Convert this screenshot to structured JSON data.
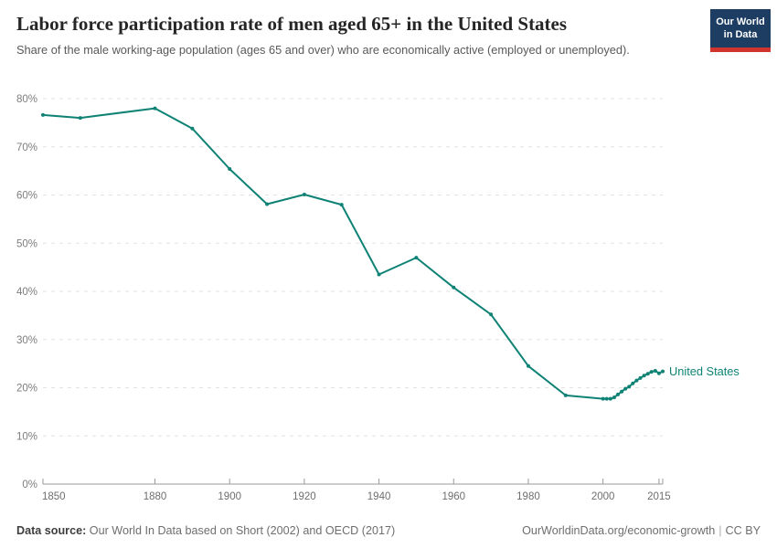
{
  "header": {
    "logo": {
      "line1": "Our World",
      "line2": "in Data",
      "bg_color": "#1d3d63",
      "accent_color": "#d0342c"
    }
  },
  "chart_data": {
    "type": "line",
    "title": "Labor force participation rate of men aged 65+ in the United States",
    "subtitle": "Share of the male working-age population (ages 65 and over) who are economically active (employed or unemployed).",
    "x": [
      1850,
      1860,
      1880,
      1890,
      1900,
      1910,
      1920,
      1930,
      1940,
      1950,
      1960,
      1970,
      1980,
      1990,
      2000,
      2001,
      2002,
      2003,
      2004,
      2005,
      2006,
      2007,
      2008,
      2009,
      2010,
      2011,
      2012,
      2013,
      2014,
      2015,
      2016
    ],
    "series": [
      {
        "name": "United States",
        "color": "#0e8275",
        "values": [
          76.6,
          76.0,
          78.0,
          73.8,
          65.4,
          58.1,
          60.1,
          58.0,
          43.5,
          47.0,
          40.8,
          35.2,
          24.5,
          18.4,
          17.7,
          17.7,
          17.7,
          18.0,
          18.6,
          19.2,
          19.8,
          20.2,
          20.9,
          21.5,
          22.0,
          22.5,
          22.9,
          23.3,
          23.5,
          23.0,
          23.4
        ]
      }
    ],
    "xlabel": "",
    "ylabel": "",
    "xlim": [
      1850,
      2016
    ],
    "ylim": [
      0,
      80
    ],
    "xtick_labels": [
      "1850",
      "1880",
      "1900",
      "1920",
      "1940",
      "1960",
      "1980",
      "2000",
      "2015"
    ],
    "xtick_values": [
      1850,
      1880,
      1900,
      1920,
      1940,
      1960,
      1980,
      2000,
      2015
    ],
    "ytick_values": [
      0,
      10,
      20,
      30,
      40,
      50,
      60,
      70,
      80
    ],
    "ytick_suffix": "%",
    "grid": "horizontal-dashed",
    "legend": "end-of-line-label",
    "colors": {
      "gridline": "#e2e2e2",
      "axis": "#9a9a9a",
      "tick_text": "#6e6e6e"
    }
  },
  "footer": {
    "datasource_label": "Data source:",
    "datasource_text": "Our World In Data based on Short (2002) and OECD (2017)",
    "link": "OurWorldinData.org/economic-growth",
    "separator": "|",
    "license": "CC BY"
  }
}
